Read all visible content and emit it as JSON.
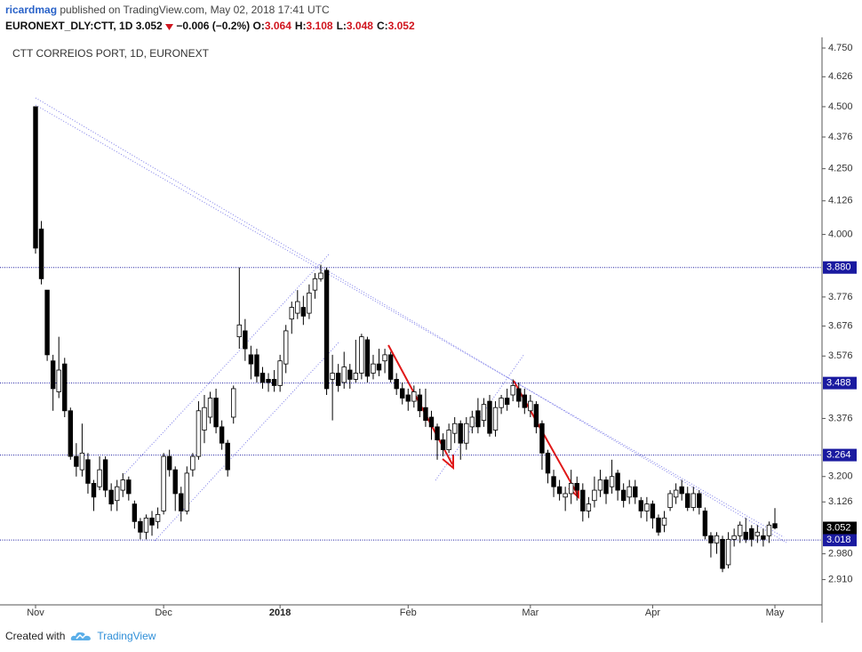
{
  "header": {
    "author": "ricardmag",
    "published": "published on TradingView.com, May 02, 2018 17:41 UTC",
    "ticker": "EURONEXT_DLY:CTT, 1D",
    "last": "3.052",
    "change": "−0.006 (−0.2%)",
    "ohlc": [
      {
        "label": "O:",
        "value": "3.064"
      },
      {
        "label": "H:",
        "value": "3.108"
      },
      {
        "label": "L:",
        "value": "3.048"
      },
      {
        "label": "C:",
        "value": "3.052"
      }
    ]
  },
  "footer": {
    "created": "Created with",
    "brand": "TradingView"
  },
  "chart_data": {
    "type": "candlestick",
    "title": "CTT CORREIOS PORT, 1D, EURONEXT",
    "log": true,
    "ylim": [
      2.843,
      4.797
    ],
    "yticks": [
      {
        "value": 4.75,
        "label": "4.750"
      },
      4.626,
      {
        "value": 4.5,
        "label": "4.500"
      },
      4.376,
      {
        "value": 4.25,
        "label": "4.250"
      },
      4.126,
      {
        "value": 4.0,
        "label": "4.000"
      },
      3.776,
      3.676,
      3.576,
      3.376,
      {
        "value": 3.2,
        "label": "3.200"
      },
      3.126,
      {
        "value": 2.98,
        "label": "2.980"
      },
      {
        "value": 2.91,
        "label": "2.910"
      }
    ],
    "levels": [
      {
        "value": 3.88,
        "label": "3.880"
      },
      {
        "value": 3.488,
        "label": "3.488"
      },
      {
        "value": 3.264,
        "label": "3.264"
      },
      {
        "value": 3.018,
        "label": "3.018"
      }
    ],
    "level_color": "#1a1aa0",
    "last_price": 3.052,
    "up_color": "#ffffff",
    "down_color": "#000000",
    "categories": [
      "Nov",
      null,
      null,
      null,
      null,
      null,
      null,
      null,
      null,
      null,
      null,
      null,
      null,
      null,
      null,
      null,
      null,
      null,
      null,
      null,
      null,
      null,
      "Dec",
      null,
      null,
      null,
      null,
      null,
      null,
      null,
      null,
      null,
      null,
      null,
      null,
      null,
      null,
      null,
      null,
      null,
      null,
      null,
      "2018",
      null,
      null,
      null,
      null,
      null,
      null,
      null,
      null,
      null,
      null,
      null,
      null,
      null,
      null,
      null,
      null,
      null,
      null,
      null,
      null,
      null,
      "Feb",
      null,
      null,
      null,
      null,
      null,
      null,
      null,
      null,
      null,
      null,
      null,
      null,
      null,
      null,
      null,
      null,
      null,
      null,
      null,
      null,
      "Mar",
      null,
      null,
      null,
      null,
      null,
      null,
      null,
      null,
      null,
      null,
      null,
      null,
      null,
      null,
      null,
      null,
      null,
      null,
      null,
      null,
      "Apr",
      null,
      null,
      null,
      null,
      null,
      null,
      null,
      null,
      null,
      null,
      null,
      null,
      null,
      null,
      null,
      null,
      null,
      null,
      null,
      null,
      "May"
    ],
    "open": [
      4.5,
      4.02,
      3.8,
      3.56,
      3.46,
      3.55,
      3.4,
      3.26,
      3.22,
      3.25,
      3.18,
      3.17,
      3.25,
      3.16,
      3.13,
      3.16,
      3.19,
      3.12,
      3.07,
      3.04,
      3.08,
      3.07,
      3.1,
      3.26,
      3.22,
      3.15,
      3.1,
      3.22,
      3.26,
      3.34,
      3.38,
      3.44,
      3.35,
      3.3,
      3.38,
      3.64,
      3.66,
      3.58,
      3.58,
      3.52,
      3.5,
      3.5,
      3.48,
      3.55,
      3.7,
      3.72,
      3.74,
      3.72,
      3.8,
      3.84,
      3.87,
      3.5,
      3.52,
      3.49,
      3.53,
      3.5,
      3.52,
      3.63,
      3.52,
      3.55,
      3.56,
      3.58,
      3.5,
      3.47,
      3.45,
      3.43,
      3.45,
      3.41,
      3.38,
      3.35,
      3.31,
      3.28,
      3.33,
      3.36,
      3.3,
      3.35,
      3.4,
      3.37,
      3.43,
      3.34,
      3.41,
      3.44,
      3.45,
      3.47,
      3.45,
      3.4,
      3.42,
      3.36,
      3.27,
      3.2,
      3.17,
      3.14,
      3.15,
      3.18,
      3.16,
      3.1,
      3.13,
      3.16,
      3.19,
      3.17,
      3.21,
      3.16,
      3.14,
      3.17,
      3.13,
      3.1,
      3.12,
      3.08,
      3.06,
      3.11,
      3.14,
      3.17,
      3.15,
      3.11,
      3.15,
      3.1,
      3.03,
      3.01,
      3.02,
      2.95,
      3.02,
      3.03,
      3.04,
      3.05,
      3.03,
      3.03,
      3.03,
      3.064
    ],
    "high": [
      4.5,
      4.05,
      3.8,
      3.58,
      3.64,
      3.57,
      3.41,
      3.3,
      3.36,
      3.27,
      3.19,
      3.26,
      3.26,
      3.18,
      3.19,
      3.21,
      3.2,
      3.13,
      3.08,
      3.09,
      3.1,
      3.11,
      3.27,
      3.28,
      3.23,
      3.17,
      3.23,
      3.27,
      3.43,
      3.45,
      3.46,
      3.47,
      3.37,
      3.31,
      3.48,
      3.88,
      3.7,
      3.61,
      3.6,
      3.54,
      3.52,
      3.53,
      3.58,
      3.68,
      3.76,
      3.8,
      3.78,
      3.82,
      3.86,
      3.89,
      3.88,
      3.58,
      3.55,
      3.59,
      3.55,
      3.63,
      3.65,
      3.64,
      3.58,
      3.6,
      3.6,
      3.59,
      3.52,
      3.49,
      3.47,
      3.48,
      3.47,
      3.47,
      3.4,
      3.36,
      3.33,
      3.36,
      3.38,
      3.37,
      3.38,
      3.4,
      3.44,
      3.44,
      3.45,
      3.43,
      3.45,
      3.47,
      3.5,
      3.49,
      3.47,
      3.45,
      3.43,
      3.37,
      3.28,
      3.22,
      3.19,
      3.17,
      3.22,
      3.2,
      3.18,
      3.14,
      3.2,
      3.22,
      3.2,
      3.25,
      3.22,
      3.18,
      3.19,
      3.19,
      3.14,
      3.14,
      3.13,
      3.09,
      3.1,
      3.16,
      3.18,
      3.19,
      3.17,
      3.17,
      3.16,
      3.11,
      3.04,
      3.04,
      3.03,
      3.04,
      3.05,
      3.07,
      3.08,
      3.06,
      3.06,
      3.05,
      3.07,
      3.108
    ],
    "low": [
      3.93,
      3.82,
      3.56,
      3.4,
      3.44,
      3.38,
      3.25,
      3.2,
      3.2,
      3.15,
      3.1,
      3.16,
      3.14,
      3.1,
      3.1,
      3.14,
      3.13,
      3.05,
      3.02,
      3.02,
      3.03,
      3.05,
      3.09,
      3.2,
      3.1,
      3.07,
      3.09,
      3.2,
      3.25,
      3.3,
      3.36,
      3.33,
      3.28,
      3.2,
      3.36,
      3.6,
      3.56,
      3.5,
      3.49,
      3.47,
      3.46,
      3.46,
      3.46,
      3.52,
      3.65,
      3.7,
      3.68,
      3.7,
      3.77,
      3.83,
      3.45,
      3.37,
      3.46,
      3.47,
      3.47,
      3.49,
      3.5,
      3.49,
      3.5,
      3.51,
      3.52,
      3.49,
      3.45,
      3.42,
      3.4,
      3.41,
      3.38,
      3.35,
      3.31,
      3.25,
      3.26,
      3.27,
      3.3,
      3.25,
      3.28,
      3.33,
      3.33,
      3.35,
      3.32,
      3.32,
      3.39,
      3.4,
      3.43,
      3.41,
      3.39,
      3.38,
      3.33,
      3.22,
      3.18,
      3.14,
      3.13,
      3.1,
      3.12,
      3.13,
      3.07,
      3.08,
      3.11,
      3.14,
      3.12,
      3.15,
      3.13,
      3.11,
      3.12,
      3.12,
      3.08,
      3.07,
      3.05,
      3.03,
      3.04,
      3.1,
      3.12,
      3.13,
      3.1,
      3.1,
      3.09,
      3.02,
      2.97,
      2.98,
      2.93,
      2.94,
      3.0,
      3.01,
      3.01,
      3.0,
      3.01,
      3.0,
      3.01,
      3.048
    ],
    "close": [
      3.95,
      3.84,
      3.58,
      3.47,
      3.53,
      3.4,
      3.26,
      3.23,
      3.27,
      3.18,
      3.14,
      3.22,
      3.16,
      3.12,
      3.17,
      3.19,
      3.15,
      3.07,
      3.04,
      3.08,
      3.06,
      3.09,
      3.26,
      3.22,
      3.15,
      3.1,
      3.21,
      3.26,
      3.4,
      3.41,
      3.44,
      3.35,
      3.3,
      3.22,
      3.47,
      3.68,
      3.6,
      3.55,
      3.51,
      3.49,
      3.49,
      3.48,
      3.56,
      3.66,
      3.74,
      3.76,
      3.71,
      3.79,
      3.84,
      3.86,
      3.47,
      3.52,
      3.48,
      3.54,
      3.5,
      3.52,
      3.64,
      3.51,
      3.55,
      3.53,
      3.58,
      3.5,
      3.47,
      3.44,
      3.43,
      3.46,
      3.4,
      3.37,
      3.35,
      3.31,
      3.28,
      3.34,
      3.36,
      3.3,
      3.36,
      3.38,
      3.35,
      3.42,
      3.33,
      3.41,
      3.44,
      3.42,
      3.48,
      3.43,
      3.41,
      3.43,
      3.35,
      3.27,
      3.21,
      3.17,
      3.15,
      3.15,
      3.18,
      3.16,
      3.1,
      3.12,
      3.16,
      3.19,
      3.15,
      3.2,
      3.16,
      3.13,
      3.17,
      3.14,
      3.1,
      3.12,
      3.08,
      3.04,
      3.08,
      3.15,
      3.16,
      3.15,
      3.11,
      3.15,
      3.11,
      3.03,
      3.01,
      3.03,
      2.94,
      3.02,
      3.03,
      3.06,
      3.02,
      3.02,
      3.04,
      3.02,
      3.06,
      3.052
    ]
  }
}
